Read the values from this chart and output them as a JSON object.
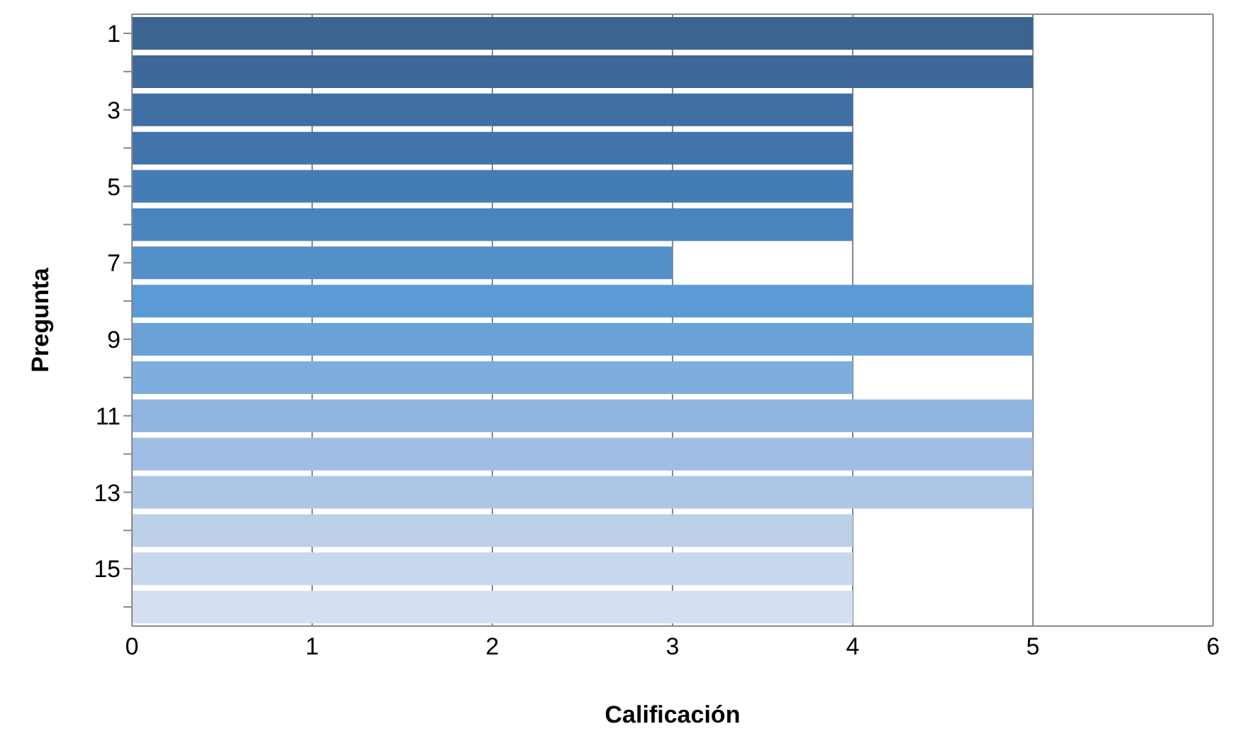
{
  "chart_data": {
    "type": "bar",
    "orientation": "horizontal",
    "xlabel": "Calificación",
    "ylabel": "Pregunta",
    "categories": [
      "1",
      null,
      "3",
      null,
      "5",
      null,
      "7",
      null,
      "9",
      null,
      "11",
      null,
      "13",
      null,
      "15",
      null
    ],
    "values": [
      5,
      5,
      4,
      4,
      4,
      4,
      3,
      5,
      5,
      4,
      5,
      5,
      5,
      4,
      4,
      4
    ],
    "colors": [
      "#3b6490",
      "#3e6898",
      "#3f6ea3",
      "#4174aa",
      "#447db5",
      "#4a84bf",
      "#538fc9",
      "#5b9bd5",
      "#6aa2d8",
      "#7eaedd",
      "#90b5e0",
      "#a0bde3",
      "#aec6e6",
      "#bbcfe9",
      "#c7d7ed",
      "#d5dff1"
    ],
    "xlim": [
      0,
      6
    ],
    "xticks": [
      0,
      1,
      2,
      3,
      4,
      5,
      6
    ],
    "grid": "x",
    "legend": false
  }
}
